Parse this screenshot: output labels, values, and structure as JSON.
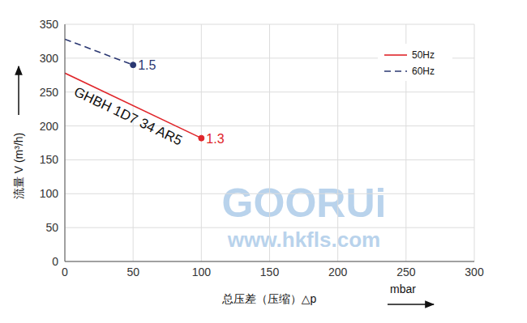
{
  "chart_data": {
    "type": "line",
    "xlabel": "总压差（压缩）△p",
    "xunit": "mbar",
    "ylabel": "流量 V (m³/h)",
    "xlim": [
      0,
      300
    ],
    "xticks": [
      0,
      50,
      100,
      150,
      200,
      250,
      300
    ],
    "ylim": [
      0,
      350
    ],
    "yticks": [
      0,
      50,
      100,
      150,
      200,
      250,
      300,
      350
    ],
    "grid": true,
    "legend": "top-right",
    "series": [
      {
        "name": "50Hz",
        "color": "#e0262b",
        "line_style": "solid",
        "x": [
          0,
          100
        ],
        "values": [
          278,
          182
        ],
        "end_label": "1.3",
        "annotation": "GHBH 1D7 34 AR5"
      },
      {
        "name": "60Hz",
        "color": "#2b3872",
        "line_style": "dashed",
        "x": [
          0,
          50
        ],
        "values": [
          328,
          290
        ],
        "end_label": "1.5"
      }
    ],
    "watermark": [
      "GOORUi",
      "www.hkfls.com"
    ]
  }
}
